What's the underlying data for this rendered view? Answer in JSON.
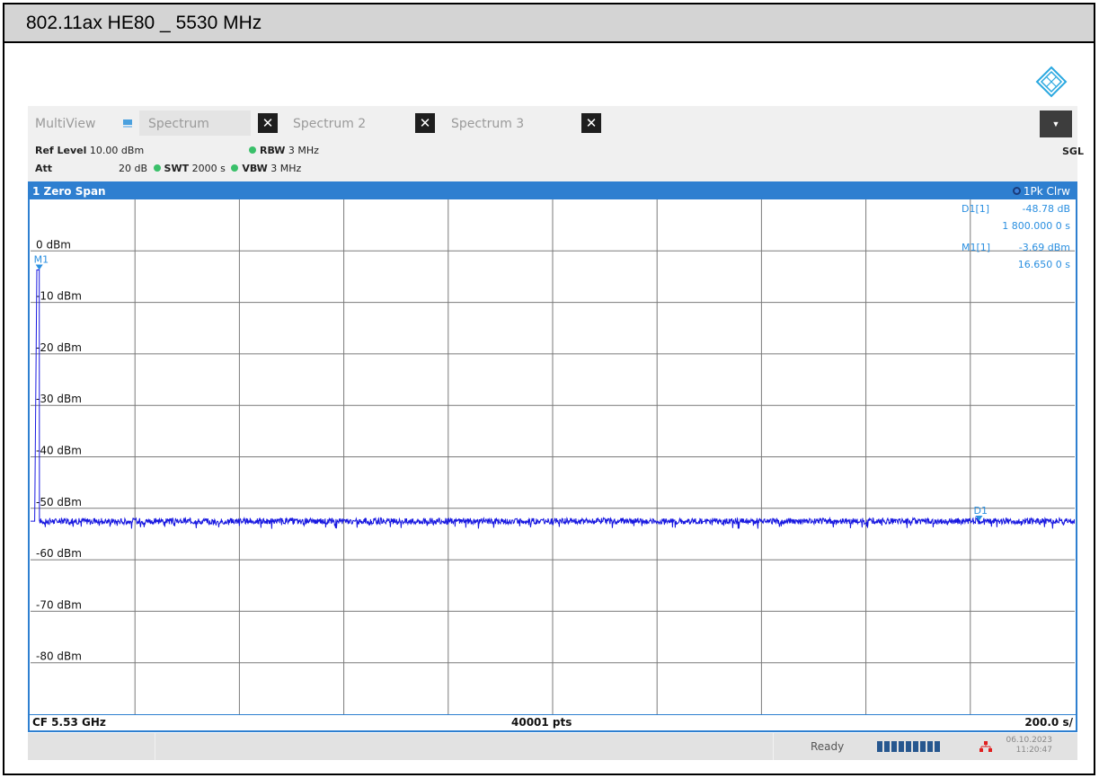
{
  "window": {
    "title": "802.11ax HE80 _ 5530 MHz"
  },
  "tabs": [
    {
      "label": "MultiView"
    },
    {
      "label": "Spectrum"
    },
    {
      "label": "Spectrum 2"
    },
    {
      "label": "Spectrum 3"
    }
  ],
  "settings": {
    "ref_level_label": "Ref Level",
    "ref_level_value": "10.00 dBm",
    "att_label": "Att",
    "att_value": "20 dB",
    "swt_label": "SWT",
    "swt_value": "2000 s",
    "rbw_label": "RBW",
    "rbw_value": "3 MHz",
    "vbw_label": "VBW",
    "vbw_value": "3 MHz",
    "mode": "SGL"
  },
  "panel": {
    "title": "1 Zero Span",
    "trace_label": "1Pk Clrw",
    "footer_left": "CF 5.53 GHz",
    "footer_center": "40001 pts",
    "footer_right": "200.0 s/"
  },
  "marker_table": [
    {
      "name": "D1[1]",
      "value": "-48.78 dB",
      "position": "1 800.000 0 s"
    },
    {
      "name": "M1[1]",
      "value": "-3.69 dBm",
      "position": "16.650 0 s"
    }
  ],
  "chart_data": {
    "type": "line",
    "title": "",
    "xlabel": "",
    "ylabel": "",
    "xlim": [
      0,
      2000
    ],
    "ylim": [
      -90,
      10
    ],
    "x_unit": "s",
    "y_unit": "dBm",
    "grid": true,
    "y_tick_labels": [
      "0 dBm",
      "-10 dBm",
      "-20 dBm",
      "-30 dBm",
      "-40 dBm",
      "-50 dBm",
      "-60 dBm",
      "-70 dBm",
      "-80 dBm"
    ],
    "y_tick_values": [
      0,
      -10,
      -20,
      -30,
      -40,
      -50,
      -60,
      -70,
      -80
    ],
    "trace_color": "#1818e0",
    "series": [
      {
        "values_description_free": true,
        "x": [
          0,
          8,
          12,
          16.65,
          17,
          2000
        ],
        "y": [
          -52.5,
          -52.5,
          -3.7,
          -3.69,
          -52.5,
          -52.5
        ],
        "noise_floor": -52.5
      }
    ],
    "markers": [
      {
        "label": "M1",
        "x": 16.65,
        "y": -3.69
      },
      {
        "label": "D1",
        "x": 1816.65,
        "y": -52.47
      }
    ]
  },
  "status": {
    "ready": "Ready",
    "date": "06.10.2023",
    "time": "11:20:47"
  },
  "colors": {
    "accent": "#2e7fd0",
    "marker": "#2a8fe0",
    "trace": "#1818e0"
  }
}
